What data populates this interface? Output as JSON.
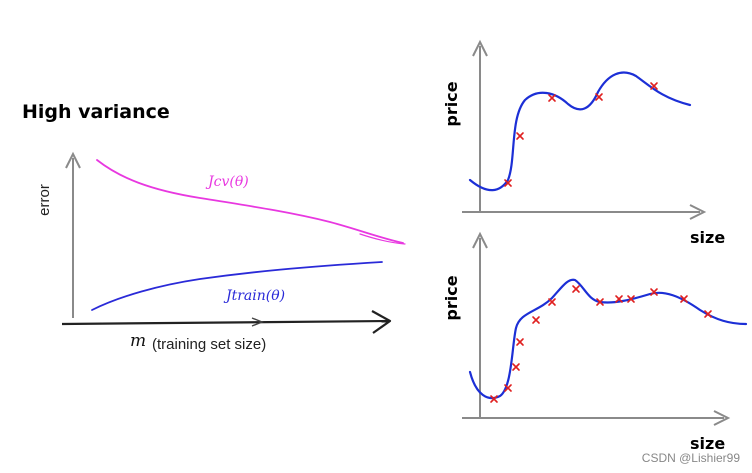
{
  "left_plot": {
    "title": "High variance",
    "y_label": "error",
    "x_var": "m",
    "x_label": "(training set size)",
    "cv_label": "Jcv(θ)",
    "train_label": "Jtrain(θ)",
    "colors": {
      "cv": "#e838e0",
      "train": "#2a2ad8"
    }
  },
  "top_plot": {
    "y_label": "price",
    "x_label": "size"
  },
  "bottom_plot": {
    "y_label": "price",
    "x_label": "size"
  },
  "watermark": "CSDN @Lishier99",
  "colors": {
    "fit_curve": "#1c2fd6",
    "points": "#e02020"
  }
}
